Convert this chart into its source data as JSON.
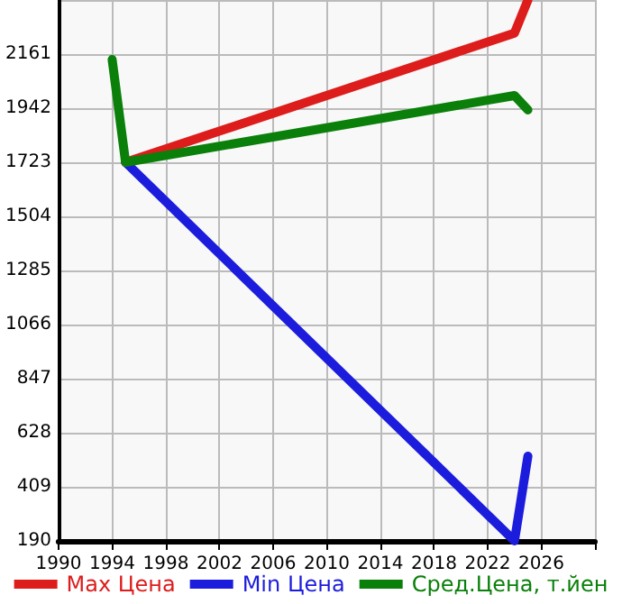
{
  "chart_data": {
    "type": "line",
    "x": [
      1994,
      1995,
      2024,
      2025
    ],
    "xlim": [
      1990,
      2030
    ],
    "xticks": [
      1990,
      1994,
      1998,
      2002,
      2006,
      2010,
      2014,
      2018,
      2022,
      2026,
      {
        "value": 2030,
        "label": null
      }
    ],
    "ylim": [
      190,
      2380
    ],
    "yticks": [
      190,
      409,
      628,
      847,
      1066,
      1285,
      1504,
      1723,
      1942,
      2161,
      {
        "value": 2380,
        "label": null
      }
    ],
    "grid": true,
    "legend": "bottom",
    "marker": "none",
    "line_style": "solid",
    "series": [
      {
        "name": "Max Цена",
        "color": "#dd1c1c",
        "values": [
          null,
          1723,
          2246,
          2380
        ]
      },
      {
        "name": "Min Цена",
        "color": "#1c1cdd",
        "values": [
          null,
          1723,
          190,
          533
        ]
      },
      {
        "name": "Сред.Цена, т.йен",
        "color": "#0a800a",
        "values": [
          2139,
          1723,
          1993,
          1935
        ]
      }
    ]
  }
}
